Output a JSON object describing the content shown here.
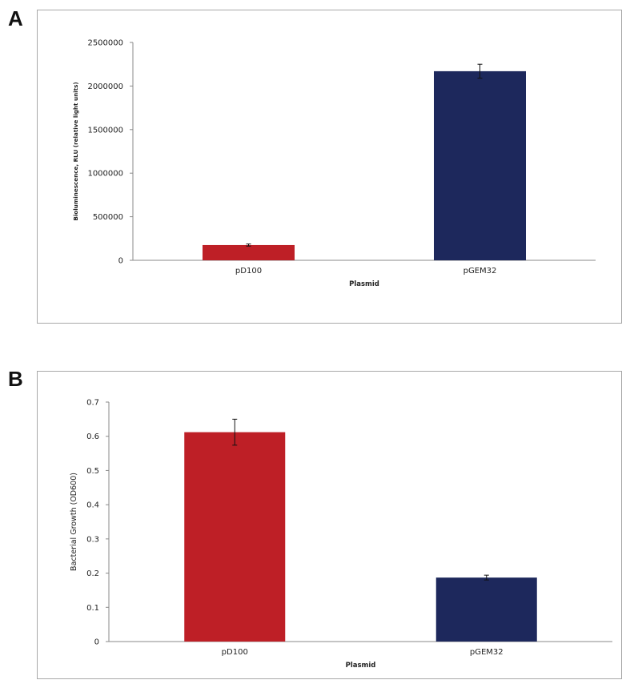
{
  "panels": [
    {
      "label": "A"
    },
    {
      "label": "B"
    }
  ],
  "chart_data": [
    {
      "type": "bar",
      "categories": [
        "pD100",
        "pGEM32"
      ],
      "values": [
        175000,
        2170000
      ],
      "error": [
        12000,
        80000
      ],
      "colors": [
        "#be1f26",
        "#1d285c"
      ],
      "xlabel": "Plasmid",
      "ylabel": "Bioluminescence, RLU (relative light units)",
      "ylim": [
        0,
        2500000
      ],
      "yticks": [
        "0",
        "500000",
        "1000000",
        "1500000",
        "2000000",
        "2500000"
      ],
      "grid": false
    },
    {
      "type": "bar",
      "categories": [
        "pD100",
        "pGEM32"
      ],
      "values": [
        0.612,
        0.187
      ],
      "error": [
        0.038,
        0.007
      ],
      "colors": [
        "#be1f26",
        "#1d285c"
      ],
      "xlabel": "Plasmid",
      "ylabel": "Bacterial Growth (OD600)",
      "ylim": [
        0,
        0.7
      ],
      "yticks": [
        "0",
        "0.1",
        "0.2",
        "0.3",
        "0.4",
        "0.5",
        "0.6",
        "0.7"
      ],
      "grid": false
    }
  ]
}
